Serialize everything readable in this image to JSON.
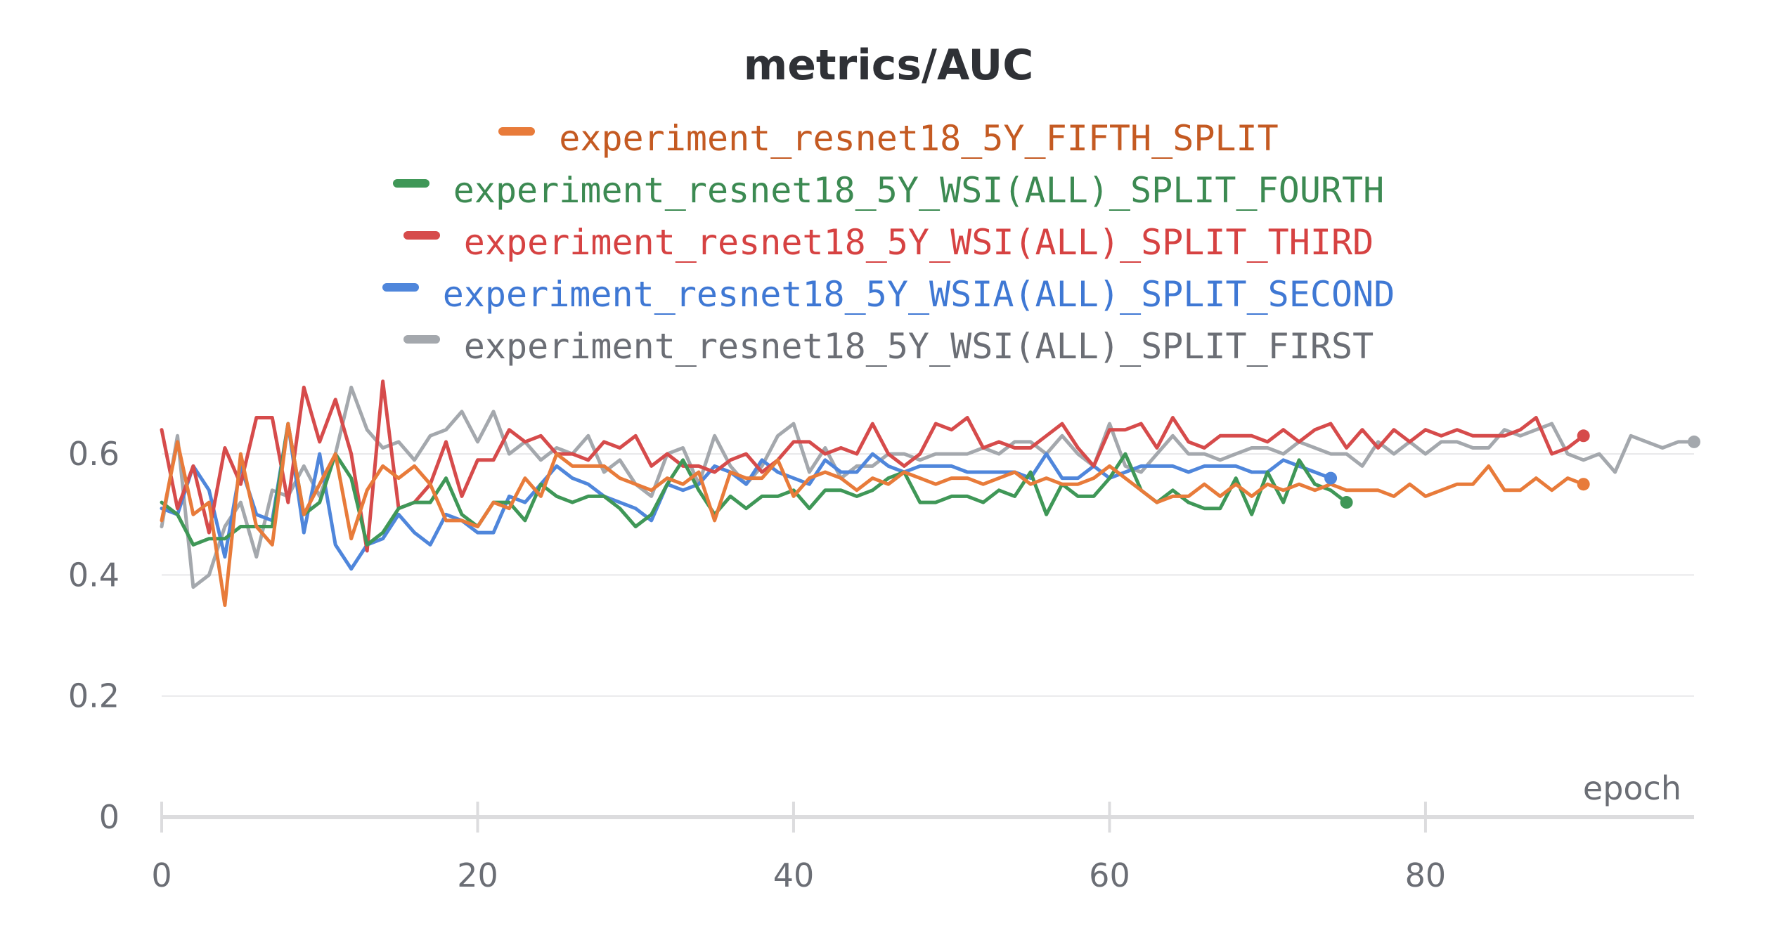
{
  "chart_data": {
    "type": "line",
    "title": "metrics/AUC",
    "xlabel": "epoch",
    "ylabel": "",
    "xlim": [
      0,
      97
    ],
    "ylim": [
      0,
      0.7
    ],
    "xticks": [
      0,
      20,
      40,
      60,
      80
    ],
    "xtick_labels": [
      "0",
      "20",
      "40",
      "60",
      "80"
    ],
    "yticks": [
      0,
      0.2,
      0.4,
      0.6
    ],
    "ytick_labels": [
      "0",
      "0.2",
      "0.4",
      "0.6"
    ],
    "grid": true,
    "legend_position": "top",
    "series": [
      {
        "name": "experiment_resnet18_5Y_FIFTH_SPLIT",
        "color": "#e87b3a",
        "label_color": "#c45a22",
        "values": [
          0.49,
          0.62,
          0.5,
          0.52,
          0.35,
          0.6,
          0.48,
          0.45,
          0.65,
          0.5,
          0.55,
          0.6,
          0.46,
          0.54,
          0.58,
          0.56,
          0.58,
          0.55,
          0.49,
          0.49,
          0.48,
          0.52,
          0.51,
          0.56,
          0.53,
          0.6,
          0.58,
          0.58,
          0.58,
          0.56,
          0.55,
          0.54,
          0.56,
          0.55,
          0.57,
          0.49,
          0.57,
          0.56,
          0.56,
          0.59,
          0.53,
          0.56,
          0.57,
          0.56,
          0.54,
          0.56,
          0.55,
          0.57,
          0.56,
          0.55,
          0.56,
          0.56,
          0.55,
          0.56,
          0.57,
          0.55,
          0.56,
          0.55,
          0.55,
          0.56,
          0.58,
          0.56,
          0.54,
          0.52,
          0.53,
          0.53,
          0.55,
          0.53,
          0.55,
          0.53,
          0.55,
          0.54,
          0.55,
          0.54,
          0.55,
          0.54,
          0.54,
          0.54,
          0.53,
          0.55,
          0.53,
          0.54,
          0.55,
          0.55,
          0.58,
          0.54,
          0.54,
          0.56,
          0.54,
          0.56,
          0.55
        ]
      },
      {
        "name": "experiment_resnet18_5Y_WSI(ALL)_SPLIT_FOURTH",
        "color": "#3f9757",
        "label_color": "#3c8a52",
        "values": [
          0.52,
          0.5,
          0.45,
          0.46,
          0.46,
          0.48,
          0.48,
          0.48,
          0.65,
          0.5,
          0.52,
          0.6,
          0.56,
          0.45,
          0.47,
          0.51,
          0.52,
          0.52,
          0.56,
          0.5,
          0.48,
          0.52,
          0.52,
          0.49,
          0.55,
          0.53,
          0.52,
          0.53,
          0.53,
          0.51,
          0.48,
          0.5,
          0.55,
          0.59,
          0.54,
          0.5,
          0.53,
          0.51,
          0.53,
          0.53,
          0.54,
          0.51,
          0.54,
          0.54,
          0.53,
          0.54,
          0.56,
          0.57,
          0.52,
          0.52,
          0.53,
          0.53,
          0.52,
          0.54,
          0.53,
          0.57,
          0.5,
          0.55,
          0.53,
          0.53,
          0.56,
          0.6,
          0.54,
          0.52,
          0.54,
          0.52,
          0.51,
          0.51,
          0.56,
          0.5,
          0.57,
          0.52,
          0.59,
          0.55,
          0.54,
          0.52
        ]
      },
      {
        "name": "experiment_resnet18_5Y_WSI(ALL)_SPLIT_THIRD",
        "color": "#d64b4b",
        "label_color": "#d64242",
        "values": [
          0.64,
          0.51,
          0.58,
          0.47,
          0.61,
          0.55,
          0.66,
          0.66,
          0.52,
          0.71,
          0.62,
          0.69,
          0.6,
          0.44,
          0.72,
          0.51,
          0.52,
          0.55,
          0.62,
          0.53,
          0.59,
          0.59,
          0.64,
          0.62,
          0.63,
          0.6,
          0.6,
          0.59,
          0.62,
          0.61,
          0.63,
          0.58,
          0.6,
          0.58,
          0.58,
          0.57,
          0.59,
          0.6,
          0.57,
          0.59,
          0.62,
          0.62,
          0.6,
          0.61,
          0.6,
          0.65,
          0.6,
          0.58,
          0.6,
          0.65,
          0.64,
          0.66,
          0.61,
          0.62,
          0.61,
          0.61,
          0.63,
          0.65,
          0.61,
          0.58,
          0.64,
          0.64,
          0.65,
          0.61,
          0.66,
          0.62,
          0.61,
          0.63,
          0.63,
          0.63,
          0.62,
          0.64,
          0.62,
          0.64,
          0.65,
          0.61,
          0.64,
          0.61,
          0.64,
          0.62,
          0.64,
          0.63,
          0.64,
          0.63,
          0.63,
          0.63,
          0.64,
          0.66,
          0.6,
          0.61,
          0.63
        ]
      },
      {
        "name": "experiment_resnet18_5Y_WSIA(ALL)_SPLIT_SECOND",
        "color": "#4f86db",
        "label_color": "#3f78d4",
        "values": [
          0.51,
          0.5,
          0.58,
          0.54,
          0.43,
          0.58,
          0.5,
          0.49,
          0.65,
          0.47,
          0.6,
          0.45,
          0.41,
          0.45,
          0.46,
          0.5,
          0.47,
          0.45,
          0.5,
          0.49,
          0.47,
          0.47,
          0.53,
          0.52,
          0.55,
          0.58,
          0.56,
          0.55,
          0.53,
          0.52,
          0.51,
          0.49,
          0.55,
          0.54,
          0.55,
          0.58,
          0.57,
          0.55,
          0.59,
          0.57,
          0.56,
          0.55,
          0.59,
          0.57,
          0.57,
          0.6,
          0.58,
          0.57,
          0.58,
          0.58,
          0.58,
          0.57,
          0.57,
          0.57,
          0.57,
          0.56,
          0.6,
          0.56,
          0.56,
          0.58,
          0.56,
          0.57,
          0.58,
          0.58,
          0.58,
          0.57,
          0.58,
          0.58,
          0.58,
          0.57,
          0.57,
          0.59,
          0.58,
          0.57,
          0.56
        ]
      },
      {
        "name": "experiment_resnet18_5Y_WSI(ALL)_SPLIT_FIRST",
        "color": "#a4a8ad",
        "label_color": "#6b6e75",
        "values": [
          0.48,
          0.63,
          0.38,
          0.4,
          0.48,
          0.52,
          0.43,
          0.54,
          0.53,
          0.58,
          0.53,
          0.6,
          0.71,
          0.64,
          0.61,
          0.62,
          0.59,
          0.63,
          0.64,
          0.67,
          0.62,
          0.67,
          0.6,
          0.62,
          0.59,
          0.61,
          0.6,
          0.63,
          0.57,
          0.59,
          0.55,
          0.53,
          0.6,
          0.61,
          0.55,
          0.63,
          0.58,
          0.55,
          0.58,
          0.63,
          0.65,
          0.57,
          0.61,
          0.56,
          0.58,
          0.58,
          0.6,
          0.6,
          0.59,
          0.6,
          0.6,
          0.6,
          0.61,
          0.6,
          0.62,
          0.62,
          0.6,
          0.63,
          0.6,
          0.58,
          0.65,
          0.58,
          0.57,
          0.6,
          0.63,
          0.6,
          0.6,
          0.59,
          0.6,
          0.61,
          0.61,
          0.6,
          0.62,
          0.61,
          0.6,
          0.6,
          0.58,
          0.62,
          0.6,
          0.62,
          0.6,
          0.62,
          0.62,
          0.61,
          0.61,
          0.64,
          0.63,
          0.64,
          0.65,
          0.6,
          0.59,
          0.6,
          0.57,
          0.63,
          0.62,
          0.61,
          0.62,
          0.62
        ]
      }
    ]
  }
}
